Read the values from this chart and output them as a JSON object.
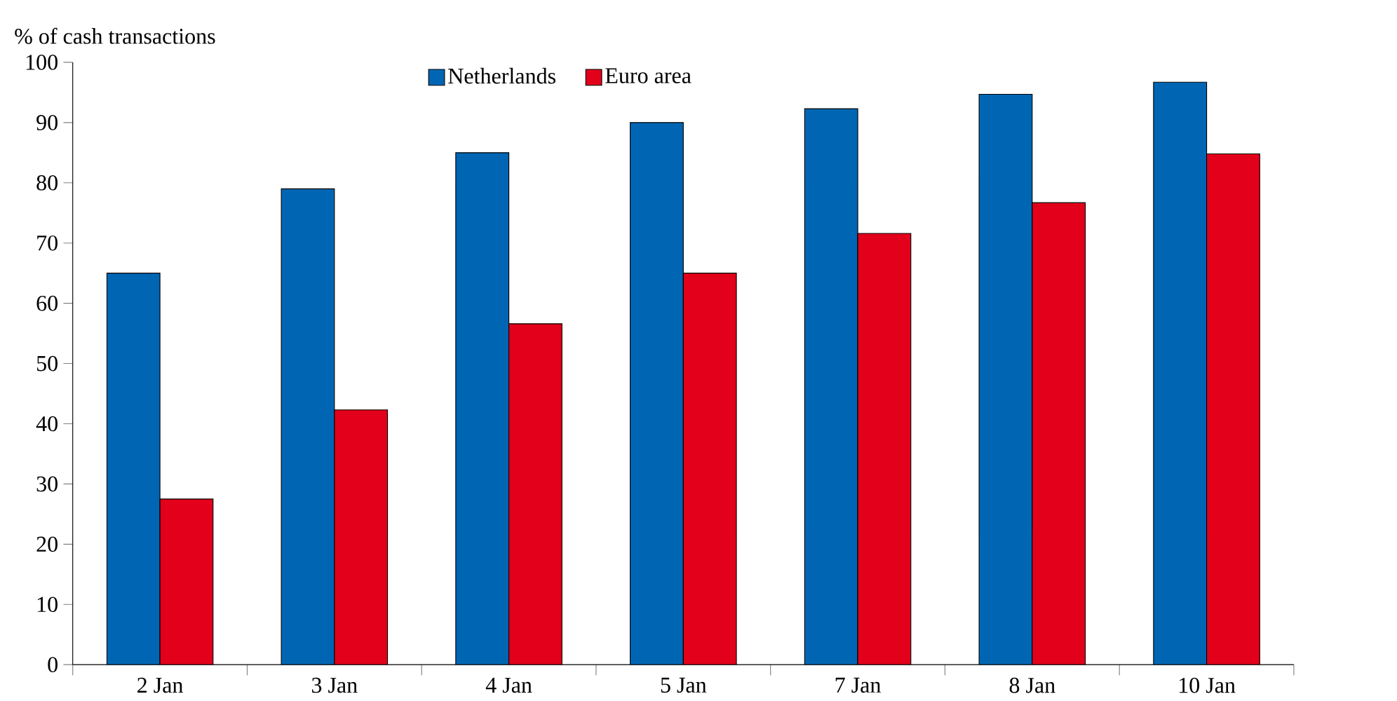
{
  "chart_data": {
    "type": "bar",
    "ylabel": "% of cash transactions",
    "categories": [
      "2 Jan",
      "3 Jan",
      "4 Jan",
      "5 Jan",
      "7 Jan",
      "8 Jan",
      "10 Jan"
    ],
    "series": [
      {
        "name": "Netherlands",
        "color": "#0066b3",
        "values": [
          65,
          79,
          85,
          90,
          92.3,
          94.7,
          96.7
        ]
      },
      {
        "name": "Euro area",
        "color": "#e2001a",
        "values": [
          27.5,
          42.3,
          56.6,
          65,
          71.6,
          76.7,
          84.8
        ]
      }
    ],
    "ylim": [
      0,
      100
    ],
    "yticks": [
      0,
      10,
      20,
      30,
      40,
      50,
      60,
      70,
      80,
      90,
      100
    ],
    "legend": "top"
  }
}
